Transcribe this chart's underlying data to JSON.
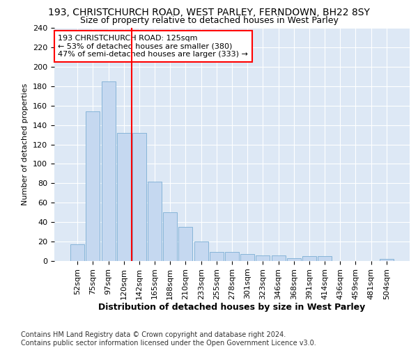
{
  "title1": "193, CHRISTCHURCH ROAD, WEST PARLEY, FERNDOWN, BH22 8SY",
  "title2": "Size of property relative to detached houses in West Parley",
  "xlabel": "Distribution of detached houses by size in West Parley",
  "ylabel": "Number of detached properties",
  "categories": [
    "52sqm",
    "75sqm",
    "97sqm",
    "120sqm",
    "142sqm",
    "165sqm",
    "188sqm",
    "210sqm",
    "233sqm",
    "255sqm",
    "278sqm",
    "301sqm",
    "323sqm",
    "346sqm",
    "368sqm",
    "391sqm",
    "414sqm",
    "436sqm",
    "459sqm",
    "481sqm",
    "504sqm"
  ],
  "values": [
    17,
    154,
    185,
    132,
    132,
    82,
    50,
    35,
    20,
    9,
    9,
    7,
    6,
    6,
    3,
    5,
    5,
    0,
    0,
    0,
    2
  ],
  "bar_color": "#c5d8f0",
  "bar_edge_color": "#7aadd4",
  "vline_x_index": 3,
  "vline_color": "red",
  "annotation_text": "193 CHRISTCHURCH ROAD: 125sqm\n← 53% of detached houses are smaller (380)\n47% of semi-detached houses are larger (333) →",
  "annotation_box_color": "white",
  "annotation_box_edge": "red",
  "ylim": [
    0,
    240
  ],
  "yticks": [
    0,
    20,
    40,
    60,
    80,
    100,
    120,
    140,
    160,
    180,
    200,
    220,
    240
  ],
  "footer": "Contains HM Land Registry data © Crown copyright and database right 2024.\nContains public sector information licensed under the Open Government Licence v3.0.",
  "bg_color": "#dde8f5",
  "title1_fontsize": 10,
  "title2_fontsize": 9,
  "xlabel_fontsize": 9,
  "ylabel_fontsize": 8,
  "tick_fontsize": 8,
  "annot_fontsize": 8,
  "footer_fontsize": 7
}
